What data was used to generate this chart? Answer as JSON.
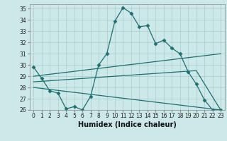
{
  "xlabel": "Humidex (Indice chaleur)",
  "bg_color": "#cce8e8",
  "grid_color": "#aacccc",
  "line_color": "#1a7070",
  "xlim": [
    -0.5,
    23.5
  ],
  "ylim": [
    26,
    35.4
  ],
  "xticks": [
    0,
    1,
    2,
    3,
    4,
    5,
    6,
    7,
    8,
    9,
    10,
    11,
    12,
    13,
    14,
    15,
    16,
    17,
    18,
    19,
    20,
    21,
    22,
    23
  ],
  "yticks": [
    26,
    27,
    28,
    29,
    30,
    31,
    32,
    33,
    34,
    35
  ],
  "lines": [
    {
      "x": [
        0,
        1,
        2,
        3,
        4,
        5,
        6,
        7,
        8,
        9,
        10,
        11,
        12,
        13,
        14,
        15,
        16,
        17,
        18,
        19,
        20,
        21,
        22,
        23
      ],
      "y": [
        29.8,
        28.8,
        27.7,
        27.5,
        26.1,
        26.3,
        26.0,
        27.2,
        30.0,
        31.0,
        33.9,
        35.1,
        34.6,
        33.4,
        33.5,
        31.9,
        32.2,
        31.5,
        31.0,
        29.4,
        28.3,
        26.9,
        26.0,
        26.0
      ],
      "marker": "D",
      "markersize": 2.5
    },
    {
      "x": [
        0,
        23
      ],
      "y": [
        29.0,
        31.0
      ],
      "marker": null,
      "markersize": 0
    },
    {
      "x": [
        0,
        20,
        23
      ],
      "y": [
        28.5,
        29.5,
        26.0
      ],
      "marker": null,
      "markersize": 0
    },
    {
      "x": [
        0,
        23
      ],
      "y": [
        28.0,
        26.0
      ],
      "marker": null,
      "markersize": 0
    }
  ]
}
